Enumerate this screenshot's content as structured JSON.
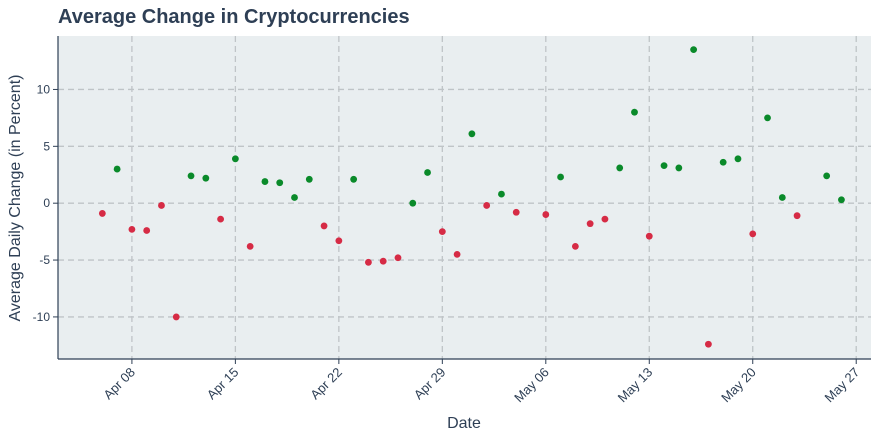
{
  "chart_data": {
    "type": "scatter",
    "title": "Average Change in Cryptocurrencies",
    "xlabel": "Date",
    "ylabel": "Average Daily Change (in Percent)",
    "x_tick_labels": [
      "Apr 08",
      "Apr 15",
      "Apr 22",
      "Apr 29",
      "May 06",
      "May 13",
      "May 20",
      "May 27"
    ],
    "x_tick_dates": [
      "2024-04-08",
      "2024-04-15",
      "2024-04-22",
      "2024-04-29",
      "2024-05-06",
      "2024-05-13",
      "2024-05-20",
      "2024-05-27"
    ],
    "y_tick_labels": [
      "10",
      "5",
      "0",
      "-5",
      "-10"
    ],
    "y_ticks": [
      10,
      5,
      0,
      -5,
      -10
    ],
    "xlim": [
      "2024-04-03",
      "2024-05-28"
    ],
    "ylim": [
      -13.7,
      14.7
    ],
    "grid": true,
    "colors": {
      "positive": "#0a8a2a",
      "negative": "#d62b45",
      "plot_background": "#e9eef0",
      "grid": "#bfc4c7",
      "text": "#2e3f55",
      "axis": "#2e3f55"
    },
    "points": [
      {
        "x": "2024-04-06",
        "y": -0.9
      },
      {
        "x": "2024-04-07",
        "y": 3.0
      },
      {
        "x": "2024-04-08",
        "y": -2.3
      },
      {
        "x": "2024-04-09",
        "y": -2.4
      },
      {
        "x": "2024-04-10",
        "y": -0.2
      },
      {
        "x": "2024-04-11",
        "y": -10.0
      },
      {
        "x": "2024-04-12",
        "y": 2.4
      },
      {
        "x": "2024-04-13",
        "y": 2.2
      },
      {
        "x": "2024-04-14",
        "y": -1.4
      },
      {
        "x": "2024-04-15",
        "y": 3.9
      },
      {
        "x": "2024-04-16",
        "y": -3.8
      },
      {
        "x": "2024-04-17",
        "y": 1.9
      },
      {
        "x": "2024-04-18",
        "y": 1.8
      },
      {
        "x": "2024-04-19",
        "y": 0.5
      },
      {
        "x": "2024-04-20",
        "y": 2.1
      },
      {
        "x": "2024-04-21",
        "y": -2.0
      },
      {
        "x": "2024-04-22",
        "y": -3.3
      },
      {
        "x": "2024-04-23",
        "y": 2.1
      },
      {
        "x": "2024-04-24",
        "y": -5.2
      },
      {
        "x": "2024-04-25",
        "y": -5.1
      },
      {
        "x": "2024-04-26",
        "y": -4.8
      },
      {
        "x": "2024-04-27",
        "y": 0.0
      },
      {
        "x": "2024-04-28",
        "y": 2.7
      },
      {
        "x": "2024-04-29",
        "y": -2.5
      },
      {
        "x": "2024-04-30",
        "y": -4.5
      },
      {
        "x": "2024-05-01",
        "y": 6.1
      },
      {
        "x": "2024-05-02",
        "y": -0.2
      },
      {
        "x": "2024-05-03",
        "y": 0.8
      },
      {
        "x": "2024-05-04",
        "y": -0.8
      },
      {
        "x": "2024-05-06",
        "y": -1.0
      },
      {
        "x": "2024-05-07",
        "y": 2.3
      },
      {
        "x": "2024-05-08",
        "y": -3.8
      },
      {
        "x": "2024-05-09",
        "y": -1.8
      },
      {
        "x": "2024-05-10",
        "y": -1.4
      },
      {
        "x": "2024-05-11",
        "y": 3.1
      },
      {
        "x": "2024-05-12",
        "y": 8.0
      },
      {
        "x": "2024-05-13",
        "y": -2.9
      },
      {
        "x": "2024-05-14",
        "y": 3.3
      },
      {
        "x": "2024-05-15",
        "y": 3.1
      },
      {
        "x": "2024-05-16",
        "y": 13.5
      },
      {
        "x": "2024-05-17",
        "y": -12.4
      },
      {
        "x": "2024-05-18",
        "y": 3.6
      },
      {
        "x": "2024-05-19",
        "y": 3.9
      },
      {
        "x": "2024-05-20",
        "y": -2.7
      },
      {
        "x": "2024-05-21",
        "y": 7.5
      },
      {
        "x": "2024-05-22",
        "y": 0.5
      },
      {
        "x": "2024-05-23",
        "y": -1.1
      },
      {
        "x": "2024-05-25",
        "y": 2.4
      },
      {
        "x": "2024-05-26",
        "y": 0.3
      }
    ]
  }
}
